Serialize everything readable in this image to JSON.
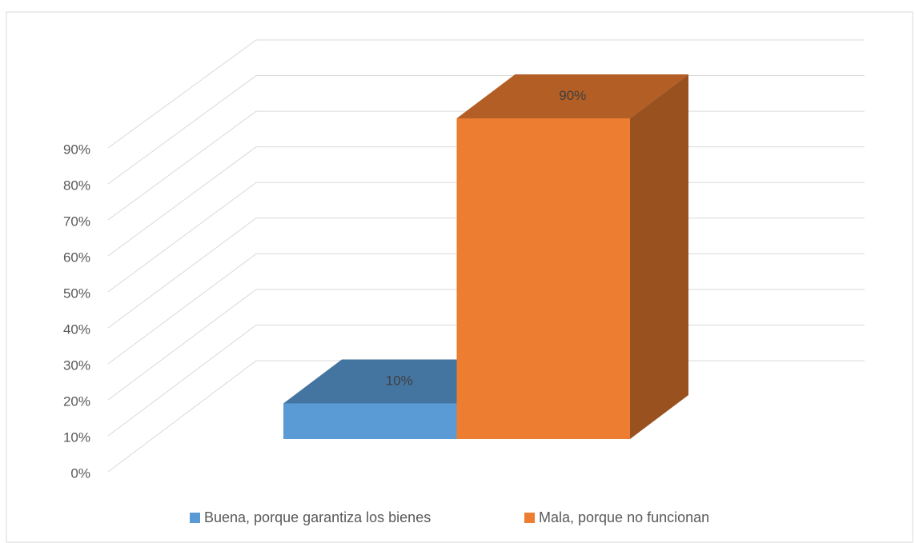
{
  "chart_data": {
    "type": "bar3d",
    "categories": [
      "Buena, porque garantiza los bienes",
      "Mala, porque no funcionan"
    ],
    "series": [
      {
        "name": "Buena, porque garantiza los bienes",
        "color": "#5b9bd5",
        "values": [
          10,
          null
        ],
        "value_labels": [
          "10%",
          null
        ]
      },
      {
        "name": "Mala, porque no funcionan",
        "color": "#ed7d31",
        "values": [
          null,
          90
        ],
        "value_labels": [
          null,
          "90%"
        ]
      }
    ],
    "ylim": [
      0,
      90
    ],
    "yticks": [
      {
        "value": 0,
        "label": "0%"
      },
      {
        "value": 10,
        "label": "10%"
      },
      {
        "value": 20,
        "label": "20%"
      },
      {
        "value": 30,
        "label": "30%"
      },
      {
        "value": 40,
        "label": "40%"
      },
      {
        "value": 50,
        "label": "50%"
      },
      {
        "value": 60,
        "label": "60%"
      },
      {
        "value": 70,
        "label": "70%"
      },
      {
        "value": 80,
        "label": "80%"
      },
      {
        "value": 90,
        "label": "90%"
      }
    ],
    "grid": true,
    "legend": "bottom"
  }
}
